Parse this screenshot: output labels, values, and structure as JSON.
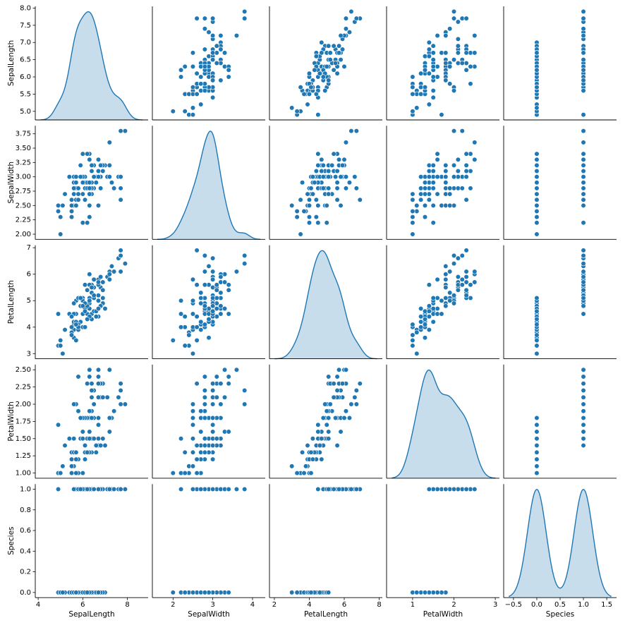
{
  "chart_data": {
    "type": "pairplot",
    "color": "#1f77b4",
    "variables": [
      {
        "name": "SepalLength",
        "values": [
          7.0,
          6.4,
          6.9,
          5.5,
          6.5,
          5.7,
          6.3,
          4.9,
          6.6,
          5.2,
          5.0,
          5.9,
          6.0,
          6.1,
          5.6,
          6.7,
          5.6,
          5.8,
          6.2,
          5.6,
          5.9,
          6.1,
          6.3,
          6.1,
          6.4,
          6.6,
          6.8,
          6.7,
          6.0,
          5.7,
          5.5,
          5.5,
          5.8,
          6.0,
          5.4,
          6.0,
          6.7,
          6.3,
          5.6,
          5.5,
          5.5,
          6.1,
          5.8,
          5.0,
          5.6,
          5.7,
          5.7,
          6.2,
          5.1,
          5.7,
          6.3,
          5.8,
          7.1,
          6.3,
          6.5,
          7.6,
          4.9,
          7.3,
          6.7,
          7.2,
          6.5,
          6.4,
          6.8,
          5.7,
          5.8,
          6.4,
          6.5,
          7.7,
          7.7,
          6.0,
          6.9,
          5.6,
          7.7,
          6.3,
          6.7,
          7.2,
          6.2,
          6.1,
          6.4,
          7.2,
          7.4,
          7.9,
          6.4,
          6.3,
          6.1,
          7.7,
          6.3,
          6.4,
          6.0,
          6.9,
          6.7,
          6.9,
          5.8,
          6.8,
          6.7,
          6.7,
          6.3,
          6.5,
          6.2,
          5.9
        ],
        "xlim": [
          3.87,
          8.93
        ],
        "xticks": [
          4,
          6,
          8
        ],
        "ylim": [
          4.75,
          8.05
        ],
        "yticks": [
          {
            "value": 5,
            "label": "5.0"
          },
          5.5,
          {
            "value": 6,
            "label": "6.0"
          },
          6.5,
          {
            "value": 7,
            "label": "7.0"
          },
          7.5,
          {
            "value": 8,
            "label": "8.0"
          }
        ]
      },
      {
        "name": "SepalWidth",
        "values": [
          3.2,
          3.2,
          3.1,
          2.3,
          2.8,
          2.8,
          3.3,
          2.4,
          2.9,
          2.7,
          2.0,
          3.0,
          2.2,
          2.9,
          2.9,
          3.1,
          3.0,
          2.7,
          2.2,
          2.5,
          3.2,
          2.8,
          2.5,
          2.8,
          2.9,
          3.0,
          2.8,
          3.0,
          2.9,
          2.6,
          2.4,
          2.4,
          2.7,
          2.7,
          3.0,
          3.4,
          3.1,
          2.3,
          3.0,
          2.5,
          2.6,
          3.0,
          2.6,
          2.3,
          2.7,
          3.0,
          2.9,
          2.9,
          2.5,
          2.8,
          3.3,
          2.7,
          3.0,
          2.9,
          3.0,
          3.0,
          2.5,
          2.9,
          2.5,
          3.6,
          3.2,
          2.7,
          3.0,
          2.5,
          2.8,
          3.2,
          3.0,
          3.8,
          2.6,
          2.2,
          3.2,
          2.8,
          2.8,
          2.7,
          3.3,
          3.2,
          2.8,
          3.0,
          2.8,
          3.0,
          2.8,
          3.8,
          2.8,
          2.8,
          2.6,
          3.0,
          3.4,
          3.1,
          3.0,
          3.1,
          3.1,
          3.1,
          2.7,
          3.2,
          3.3,
          3.0,
          2.5,
          3.0,
          3.4,
          3.0
        ],
        "xlim": [
          1.48,
          4.32
        ],
        "xticks": [
          2,
          3,
          4
        ],
        "ylim": [
          1.91,
          3.89
        ],
        "yticks": [
          {
            "value": 2,
            "label": "2.00"
          },
          2.25,
          {
            "value": 2.5,
            "label": "2.50"
          },
          2.75,
          {
            "value": 3,
            "label": "3.00"
          },
          3.25,
          {
            "value": 3.5,
            "label": "3.50"
          },
          3.75
        ]
      },
      {
        "name": "PetalLength",
        "values": [
          4.7,
          4.5,
          4.9,
          4.0,
          4.6,
          4.5,
          4.7,
          3.3,
          4.6,
          3.9,
          3.5,
          4.2,
          4.0,
          4.7,
          3.6,
          4.4,
          4.5,
          4.1,
          4.5,
          3.9,
          4.8,
          4.0,
          4.9,
          4.7,
          4.3,
          4.4,
          4.8,
          5.0,
          4.5,
          3.5,
          3.8,
          3.7,
          3.9,
          5.1,
          4.5,
          4.5,
          4.7,
          4.4,
          4.1,
          4.0,
          4.4,
          4.6,
          4.0,
          3.3,
          4.2,
          4.2,
          4.2,
          4.3,
          3.0,
          4.1,
          6.0,
          5.1,
          5.9,
          5.6,
          5.8,
          6.6,
          4.5,
          6.3,
          5.8,
          6.1,
          5.1,
          5.3,
          5.5,
          5.0,
          5.1,
          5.3,
          5.5,
          6.7,
          6.9,
          5.0,
          5.7,
          4.9,
          6.7,
          4.9,
          5.7,
          6.0,
          4.8,
          4.9,
          5.6,
          5.8,
          6.1,
          6.4,
          5.6,
          5.1,
          5.6,
          6.1,
          5.6,
          5.5,
          4.8,
          5.4,
          5.6,
          5.1,
          5.1,
          5.9,
          5.7,
          5.2,
          5.0,
          5.2,
          5.4,
          5.1
        ],
        "xlim": [
          1.72,
          8.18
        ],
        "xticks": [
          2,
          4,
          6,
          8
        ],
        "ylim": [
          2.805,
          7.095
        ],
        "yticks": [
          3,
          4,
          5,
          6,
          7
        ]
      },
      {
        "name": "PetalWidth",
        "values": [
          1.4,
          1.5,
          1.5,
          1.3,
          1.5,
          1.3,
          1.6,
          1.0,
          1.3,
          1.4,
          1.0,
          1.5,
          1.0,
          1.4,
          1.3,
          1.4,
          1.5,
          1.0,
          1.5,
          1.1,
          1.8,
          1.3,
          1.5,
          1.2,
          1.3,
          1.4,
          1.4,
          1.7,
          1.5,
          1.0,
          1.1,
          1.0,
          1.2,
          1.6,
          1.5,
          1.6,
          1.5,
          1.3,
          1.3,
          1.3,
          1.2,
          1.4,
          1.2,
          1.0,
          1.3,
          1.2,
          1.3,
          1.3,
          1.1,
          1.3,
          2.5,
          1.9,
          2.1,
          1.8,
          2.2,
          2.1,
          1.7,
          1.8,
          1.8,
          2.5,
          2.0,
          1.9,
          2.1,
          2.0,
          2.4,
          2.3,
          1.8,
          2.2,
          2.3,
          1.5,
          2.3,
          2.0,
          2.0,
          1.8,
          2.1,
          1.8,
          1.8,
          1.8,
          2.1,
          1.6,
          1.9,
          2.0,
          2.2,
          1.5,
          1.4,
          2.3,
          2.4,
          1.8,
          1.8,
          2.1,
          2.4,
          2.3,
          1.9,
          2.3,
          2.5,
          2.3,
          1.9,
          2.0,
          2.3,
          1.8
        ],
        "xlim": [
          0.37,
          3.1
        ],
        "xticks": [
          1,
          2,
          3
        ],
        "ylim": [
          0.925,
          2.575
        ],
        "yticks": [
          {
            "value": 1,
            "label": "1.00"
          },
          1.25,
          {
            "value": 1.5,
            "label": "1.50"
          },
          1.75,
          {
            "value": 2,
            "label": "2.00"
          },
          2.25,
          {
            "value": 2.5,
            "label": "2.50"
          }
        ]
      },
      {
        "name": "Species",
        "values": [
          0,
          0,
          0,
          0,
          0,
          0,
          0,
          0,
          0,
          0,
          0,
          0,
          0,
          0,
          0,
          0,
          0,
          0,
          0,
          0,
          0,
          0,
          0,
          0,
          0,
          0,
          0,
          0,
          0,
          0,
          0,
          0,
          0,
          0,
          0,
          0,
          0,
          0,
          0,
          0,
          0,
          0,
          0,
          0,
          0,
          0,
          0,
          0,
          0,
          0,
          1,
          1,
          1,
          1,
          1,
          1,
          1,
          1,
          1,
          1,
          1,
          1,
          1,
          1,
          1,
          1,
          1,
          1,
          1,
          1,
          1,
          1,
          1,
          1,
          1,
          1,
          1,
          1,
          1,
          1,
          1,
          1,
          1,
          1,
          1,
          1,
          1,
          1,
          1,
          1,
          1,
          1,
          1,
          1,
          1,
          1,
          1,
          1,
          1,
          1
        ],
        "xlim": [
          -0.71,
          1.71
        ],
        "xticks": [
          {
            "value": -0.5,
            "label": "−0.5"
          },
          {
            "value": 0,
            "label": "0.0"
          },
          0.5,
          {
            "value": 1,
            "label": "1.0"
          },
          1.5
        ],
        "ylim": [
          -0.05,
          1.05
        ],
        "yticks": [
          {
            "value": 0,
            "label": "0.0"
          },
          0.2,
          0.4,
          0.6,
          0.8,
          {
            "value": 1,
            "label": "1.0"
          }
        ]
      }
    ]
  }
}
